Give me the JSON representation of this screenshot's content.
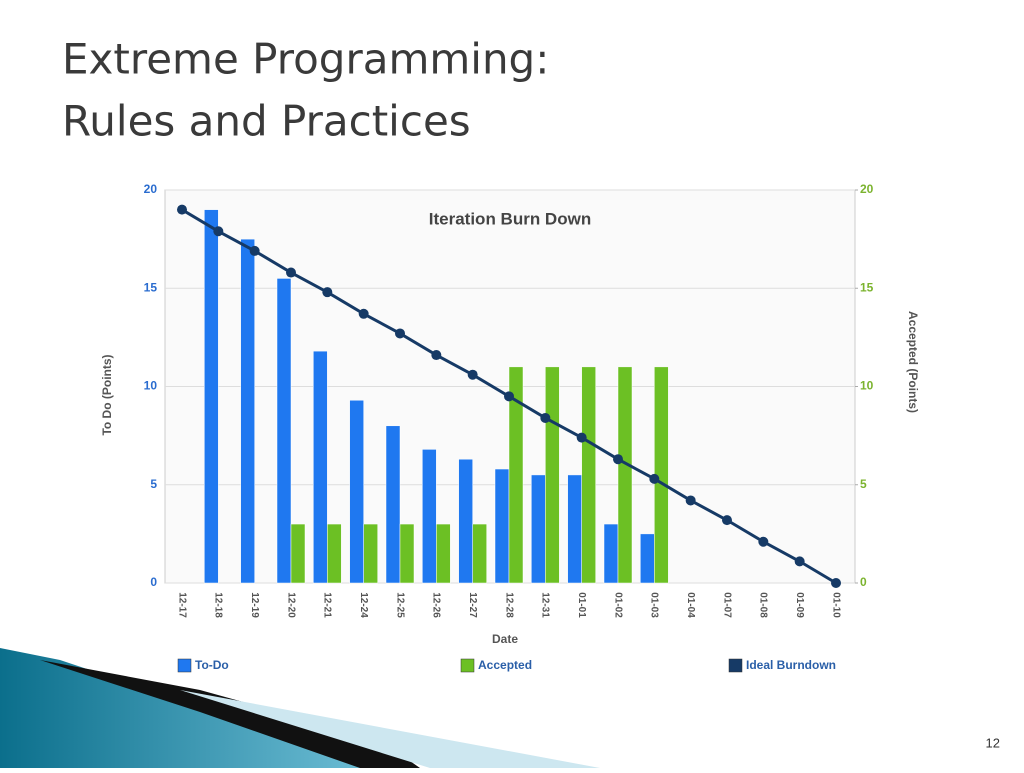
{
  "slide": {
    "title": [
      "Extreme Programming:",
      "Rules and Practices"
    ],
    "page_number": "12"
  },
  "chart_data": {
    "type": "bar",
    "title": "Iteration Burn Down",
    "x_label": "Date",
    "y_label": "To Do (Points)",
    "y2_label": "Accepted (Points)",
    "categories": [
      "12-17",
      "12-18",
      "12-19",
      "12-20",
      "12-21",
      "12-24",
      "12-25",
      "12-26",
      "12-27",
      "12-28",
      "12-31",
      "01-01",
      "01-02",
      "01-03",
      "01-04",
      "01-07",
      "01-08",
      "01-09",
      "01-10"
    ],
    "series": [
      {
        "name": "To-Do",
        "type": "bar",
        "color": "#1f78f0",
        "values": [
          0,
          19,
          17.5,
          15.5,
          11.8,
          9.3,
          8,
          6.8,
          6.3,
          5.8,
          5.5,
          5.5,
          3,
          2.5,
          0,
          0,
          0,
          0,
          0
        ]
      },
      {
        "name": "Accepted",
        "type": "bar",
        "axis": "y2",
        "color": "#6cc024",
        "values": [
          0,
          0,
          0,
          3,
          3,
          3,
          3,
          3,
          3,
          11,
          11,
          11,
          11,
          11,
          0,
          0,
          0,
          0,
          0
        ]
      },
      {
        "name": "Ideal Burndown",
        "type": "line",
        "color": "#163a66",
        "values": [
          19,
          17.9,
          16.9,
          15.8,
          14.8,
          13.7,
          12.7,
          11.6,
          10.6,
          9.5,
          8.4,
          7.4,
          6.3,
          5.3,
          4.2,
          3.2,
          2.1,
          1.1,
          0
        ]
      }
    ],
    "ylim": [
      0,
      20
    ],
    "yticks": [
      0,
      5,
      10,
      15,
      20
    ],
    "y2lim": [
      0,
      20
    ],
    "y2ticks": [
      0,
      5,
      10,
      15,
      20
    ],
    "grid": true,
    "legend": "bottom"
  }
}
